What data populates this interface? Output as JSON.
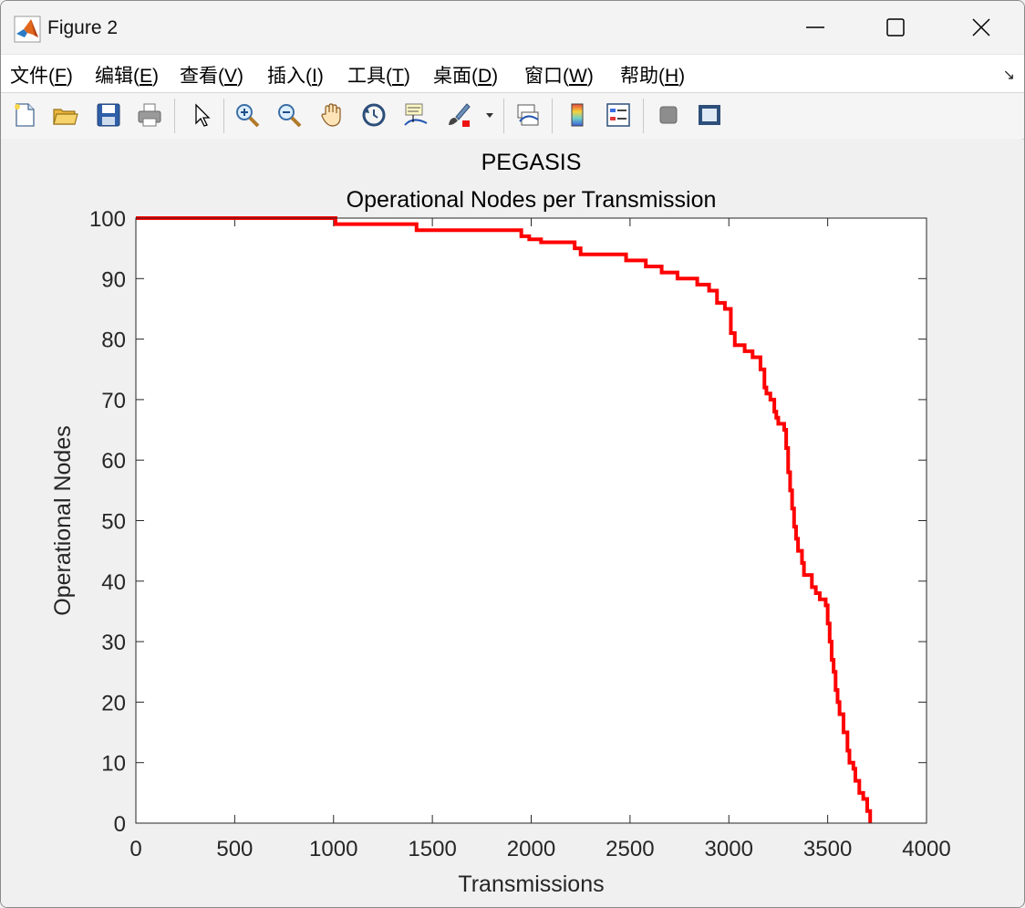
{
  "window": {
    "title": "Figure 2",
    "controls": [
      "minimize",
      "maximize",
      "close"
    ]
  },
  "menu": {
    "items": [
      {
        "label": "文件(",
        "key": "F",
        "end": ")"
      },
      {
        "label": "编辑(",
        "key": "E",
        "end": ")"
      },
      {
        "label": "查看(",
        "key": "V",
        "end": ")"
      },
      {
        "label": "插入(",
        "key": "I",
        "end": ")"
      },
      {
        "label": "工具(",
        "key": "T",
        "end": ")"
      },
      {
        "label": "桌面(",
        "key": "D",
        "end": ")"
      },
      {
        "label": "窗口(",
        "key": "W",
        "end": ")"
      },
      {
        "label": "帮助(",
        "key": "H",
        "end": ")"
      }
    ],
    "dock_icon": "↘"
  },
  "toolbar": {
    "icons": [
      "new-figure-icon",
      "open-file-icon",
      "save-icon",
      "print-icon",
      "select-arrow-icon",
      "zoom-in-icon",
      "zoom-out-icon",
      "pan-hand-icon",
      "rotate-3d-icon",
      "data-cursor-icon",
      "brush-icon",
      "dropdown-arrow-icon",
      "link-plot-icon",
      "colorbar-icon",
      "legend-icon",
      "hide-plot-tools-icon",
      "show-plot-tools-icon"
    ]
  },
  "chart_data": {
    "type": "line",
    "title": "PEGASIS",
    "subtitle": "Operational Nodes per Transmission",
    "xlabel": "Transmissions",
    "ylabel": "Operational Nodes",
    "xlim": [
      0,
      4000
    ],
    "ylim": [
      0,
      100
    ],
    "xticks": [
      0,
      500,
      1000,
      1500,
      2000,
      2500,
      3000,
      3500,
      4000
    ],
    "yticks": [
      0,
      10,
      20,
      30,
      40,
      50,
      60,
      70,
      80,
      90,
      100
    ],
    "grid": false,
    "line_color": "#ff0000",
    "step": true,
    "series": [
      {
        "x": [
          0,
          1010,
          1420,
          1950,
          1990,
          2050,
          2220,
          2250,
          2480,
          2580,
          2660,
          2740,
          2840,
          2900,
          2940,
          2980,
          3010,
          3030,
          3080,
          3120,
          3160,
          3180,
          3190,
          3210,
          3230,
          3240,
          3250,
          3280,
          3290,
          3300,
          3310,
          3320,
          3330,
          3340,
          3350,
          3370,
          3380,
          3420,
          3440,
          3460,
          3490,
          3500,
          3510,
          3520,
          3530,
          3540,
          3550,
          3560,
          3580,
          3600,
          3610,
          3630,
          3640,
          3660,
          3680,
          3700,
          3715
        ],
        "y": [
          100,
          99,
          98,
          97,
          96.5,
          96,
          95,
          94,
          93,
          92,
          91,
          90,
          89,
          88,
          86,
          85,
          81,
          79,
          78,
          77,
          75,
          72,
          71,
          70,
          68,
          67,
          66,
          65,
          62,
          58,
          55,
          52,
          49,
          47,
          45,
          43,
          41,
          39,
          38,
          37,
          36,
          33,
          30,
          27,
          25,
          22,
          20,
          18,
          15,
          12,
          10,
          9,
          7,
          5,
          4,
          2,
          0
        ]
      }
    ]
  }
}
